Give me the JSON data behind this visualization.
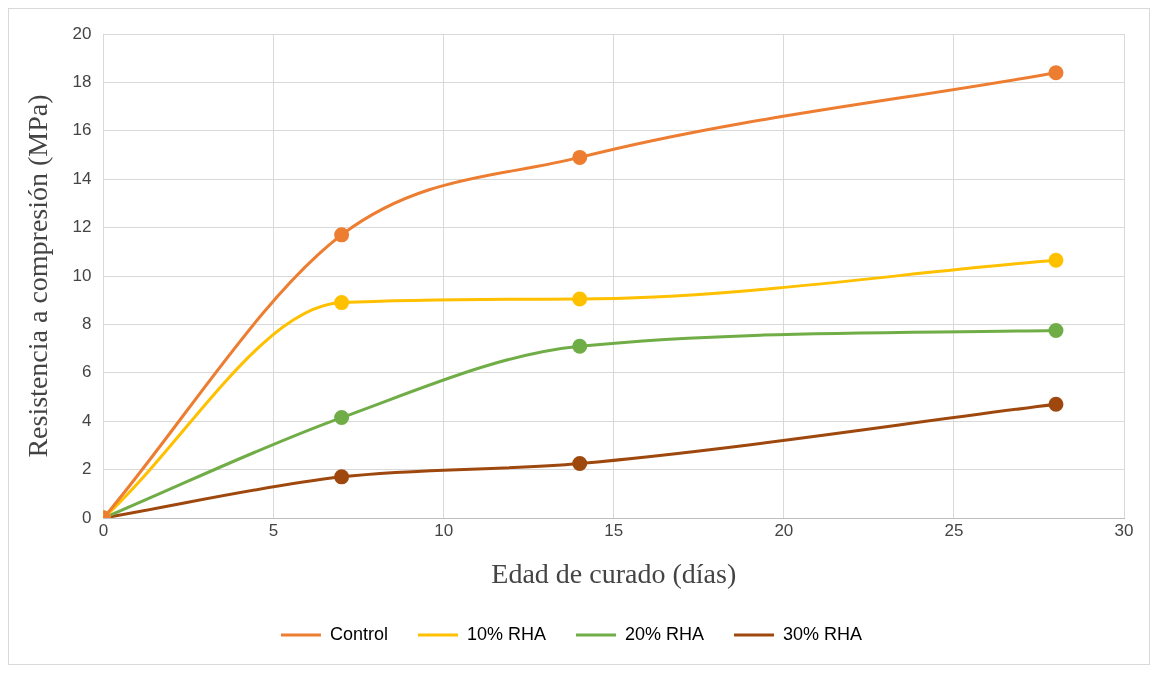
{
  "chart_data": {
    "type": "line",
    "xlabel": "Edad de curado (días)",
    "ylabel": "Resistencia a compresión (MPa)",
    "x": [
      0,
      7,
      14,
      28
    ],
    "series": [
      {
        "name": "Control",
        "color": "#ed7d31",
        "values": [
          0,
          11.7,
          14.9,
          18.4
        ]
      },
      {
        "name": "10% RHA",
        "color": "#ffc000",
        "values": [
          0,
          8.9,
          9.05,
          10.65
        ]
      },
      {
        "name": "20% RHA",
        "color": "#70ad47",
        "values": [
          0,
          4.15,
          7.1,
          7.75
        ]
      },
      {
        "name": "30% RHA",
        "color": "#9e480e",
        "values": [
          0,
          1.7,
          2.25,
          4.7
        ]
      }
    ],
    "xlim": [
      0,
      30
    ],
    "xticks": [
      0,
      5,
      10,
      15,
      20,
      25,
      30
    ],
    "ylim": [
      0,
      20
    ],
    "yticks": [
      0,
      2,
      4,
      6,
      8,
      10,
      12,
      14,
      16,
      18,
      20
    ],
    "grid": true,
    "legend": "bottom",
    "marker": "circle",
    "line_style": "solid"
  }
}
